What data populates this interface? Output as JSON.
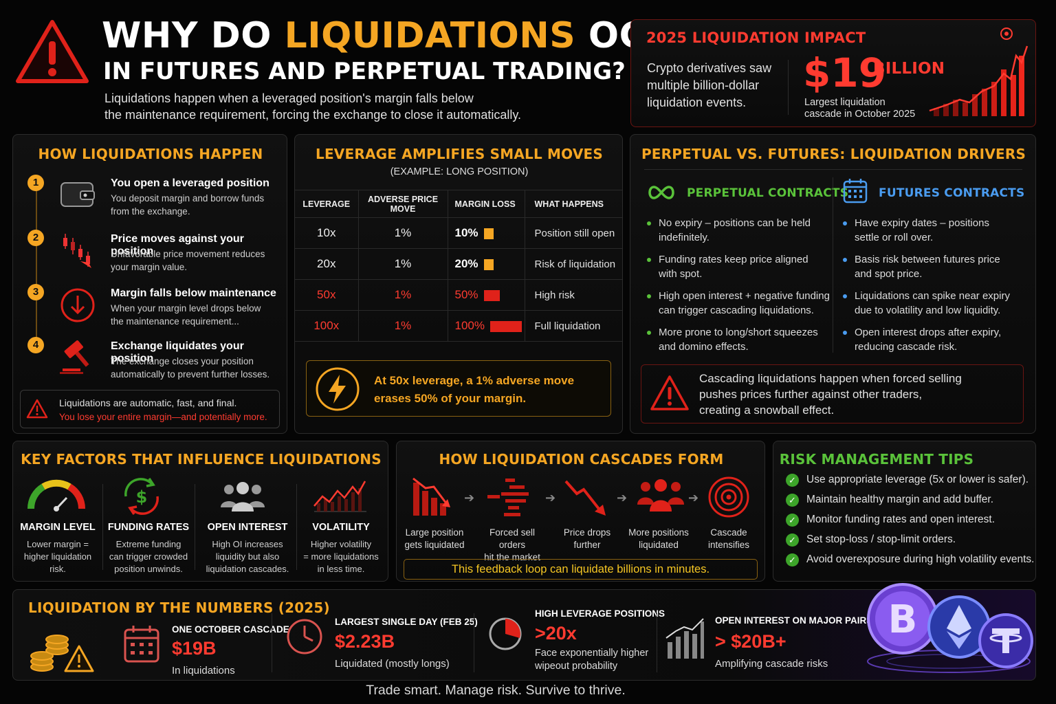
{
  "header": {
    "title_part1": "WHY DO",
    "title_highlight": "LIQUIDATIONS",
    "title_part2": "OCCUR",
    "subtitle": "IN FUTURES AND PERPETUAL TRADING?",
    "intro_line1": "Liquidations happen when a leveraged position's margin falls below",
    "intro_line2": "the maintenance requirement, forcing the exchange to close it automatically."
  },
  "impact": {
    "title": "2025 LIQUIDATION IMPACT",
    "desc_line1": "Crypto derivatives saw",
    "desc_line2": "multiple billion-dollar",
    "desc_line3": "liquidation events.",
    "amount": "$19",
    "amount_unit": "BILLION",
    "caption_line1": "Largest liquidation",
    "caption_line2": "cascade in October 2025"
  },
  "how": {
    "title": "HOW LIQUIDATIONS HAPPEN",
    "steps": [
      {
        "num": "1",
        "title": "You open a leveraged position",
        "d1": "You deposit margin and borrow funds",
        "d2": "from the exchange."
      },
      {
        "num": "2",
        "title": "Price moves against your position",
        "d1": "Unfavorable price movement reduces",
        "d2": "your margin value."
      },
      {
        "num": "3",
        "title": "Margin falls below maintenance",
        "d1": "When your margin level drops below",
        "d2": "the maintenance requirement..."
      },
      {
        "num": "4",
        "title": "Exchange liquidates your position",
        "d1": "The exchange closes your position",
        "d2": "automatically to prevent further losses."
      }
    ],
    "warn_line1": "Liquidations are automatic, fast, and final.",
    "warn_line2": "You lose your entire margin—and potentially more."
  },
  "leverage": {
    "title": "LEVERAGE AMPLIFIES SMALL MOVES",
    "subtitle": "(EXAMPLE: LONG POSITION)",
    "columns": [
      "LEVERAGE",
      "ADVERSE PRICE MOVE",
      "MARGIN LOSS",
      "WHAT HAPPENS"
    ],
    "rows": [
      {
        "lev": "10x",
        "move": "1%",
        "loss": "10%",
        "loss_frac": 0.1,
        "what": "Position still open",
        "risk": "low"
      },
      {
        "lev": "20x",
        "move": "1%",
        "loss": "20%",
        "loss_frac": 0.2,
        "what": "Risk of liquidation",
        "risk": "mid"
      },
      {
        "lev": "50x",
        "move": "1%",
        "loss": "50%",
        "loss_frac": 0.5,
        "what": "High risk",
        "risk": "high"
      },
      {
        "lev": "100x",
        "move": "1%",
        "loss": "100%",
        "loss_frac": 1.0,
        "what": "Full liquidation",
        "risk": "high"
      }
    ],
    "callout_line1": "At 50x leverage, a 1% adverse move",
    "callout_line2": "erases 50% of your margin."
  },
  "drivers": {
    "title": "PERPETUAL VS. FUTURES: LIQUIDATION DRIVERS",
    "perp_title": "PERPETUAL CONTRACTS",
    "perp": [
      {
        "l1": "No expiry – positions can be held",
        "l2": "indefinitely."
      },
      {
        "l1": "Funding rates keep price aligned",
        "l2": "with spot."
      },
      {
        "l1": "High open interest + negative funding",
        "l2": "can trigger cascading liquidations."
      },
      {
        "l1": "More prone to long/short squeezes",
        "l2": "and domino effects."
      }
    ],
    "fut_title": "FUTURES CONTRACTS",
    "fut": [
      {
        "l1": "Have expiry dates – positions",
        "l2": "settle or roll over."
      },
      {
        "l1": "Basis risk between futures price",
        "l2": "and spot price."
      },
      {
        "l1": "Liquidations can spike near expiry",
        "l2": "due to volatility and low liquidity."
      },
      {
        "l1": "Open interest drops after expiry,",
        "l2": "reducing cascade risk."
      }
    ],
    "warn_line1": "Cascading liquidations happen when forced selling",
    "warn_line2": "pushes prices further against other traders,",
    "warn_line3": "creating a snowball effect."
  },
  "factors": {
    "title": "KEY FACTORS THAT INFLUENCE LIQUIDATIONS",
    "items": [
      {
        "title": "MARGIN LEVEL",
        "d1": "Lower margin =",
        "d2": "higher liquidation",
        "d3": "risk."
      },
      {
        "title": "FUNDING RATES",
        "d1": "Extreme funding",
        "d2": "can trigger crowded",
        "d3": "position unwinds."
      },
      {
        "title": "OPEN INTEREST",
        "d1": "High OI increases",
        "d2": "liquidity but also",
        "d3": "liquidation cascades."
      },
      {
        "title": "VOLATILITY",
        "d1": "Higher volatility",
        "d2": "= more liquidations",
        "d3": "in less time."
      }
    ]
  },
  "cascade": {
    "title": "HOW LIQUIDATION CASCADES FORM",
    "steps": [
      {
        "l1": "Large position",
        "l2": "gets liquidated"
      },
      {
        "l1": "Forced sell orders",
        "l2": "hit the market"
      },
      {
        "l1": "Price drops",
        "l2": "further"
      },
      {
        "l1": "More positions",
        "l2": "liquidated"
      },
      {
        "l1": "Cascade",
        "l2": "intensifies"
      }
    ],
    "footer": "This feedback loop can liquidate billions in minutes."
  },
  "tips": {
    "title": "RISK MANAGEMENT TIPS",
    "items": [
      "Use appropriate leverage (5x or lower is safer).",
      "Maintain healthy margin and add buffer.",
      "Monitor funding rates and open interest.",
      "Set stop-loss / stop-limit orders.",
      "Avoid overexposure during high volatility events."
    ]
  },
  "numbers": {
    "title": "LIQUIDATION BY THE NUMBERS (2025)",
    "items": [
      {
        "title": "ONE OCTOBER CASCADE",
        "value": "$19B",
        "d1": "In liquidations",
        "d2": ""
      },
      {
        "title": "LARGEST SINGLE DAY (FEB 25)",
        "value": "$2.23B",
        "d1": "Liquidated (mostly longs)",
        "d2": ""
      },
      {
        "title": "HIGH LEVERAGE POSITIONS",
        "value": ">20x",
        "d1": "Face exponentially higher",
        "d2": "wipeout probability"
      },
      {
        "title": "OPEN INTEREST ON MAJOR PAIRS",
        "value": "> $20B+",
        "d1": "Amplifying cascade risks",
        "d2": ""
      }
    ]
  },
  "coins": [
    "bitcoin-icon",
    "ethereum-icon",
    "tether-icon"
  ],
  "footer": "Trade smart. Manage risk. Survive to thrive.",
  "colors": {
    "accent": "#f5a623",
    "danger": "#ff3b30",
    "perp": "#5ac23a",
    "futures": "#4a9cf0"
  }
}
